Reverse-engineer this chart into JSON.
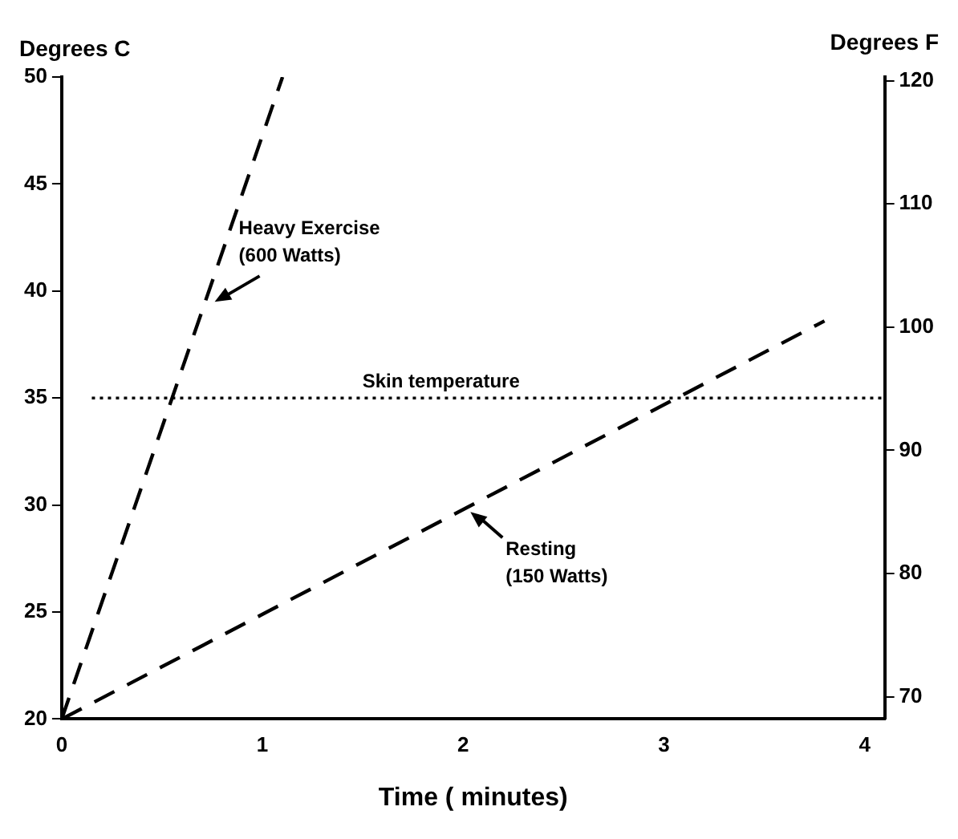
{
  "chart_data": {
    "type": "line",
    "xlabel": "Time ( minutes)",
    "ylabel": "Degrees C",
    "y2label": "Degrees F",
    "xlim": [
      0,
      4.1
    ],
    "xticks": [
      0,
      1,
      2,
      3,
      4
    ],
    "ylim": [
      20,
      50
    ],
    "yticks": [
      20,
      25,
      30,
      35,
      40,
      45,
      50
    ],
    "y2lim": [
      68.2,
      120.3
    ],
    "y2ticks": [
      70,
      80,
      90,
      100,
      110,
      120
    ],
    "grid": false,
    "legend": false,
    "marker": "none",
    "line_style": "dashed",
    "series": [
      {
        "color": "#000000",
        "x": [
          0,
          1.1
        ],
        "values": [
          20,
          50
        ]
      },
      {
        "color": "#000000",
        "x": [
          0,
          3.8
        ],
        "values": [
          20,
          38.6
        ]
      }
    ],
    "ref_lines": [
      {
        "axis": "y",
        "value": 35,
        "label": "Skin temperature",
        "color": "#000000",
        "line_style": "dotted"
      }
    ],
    "annotations": [
      {
        "text": "Heavy Exercise\n(600 Watts)",
        "x": 0.73,
        "y": 39.8
      },
      {
        "text": "Resting\n(150 Watts)",
        "x": 2.02,
        "y": 29.9
      }
    ]
  }
}
